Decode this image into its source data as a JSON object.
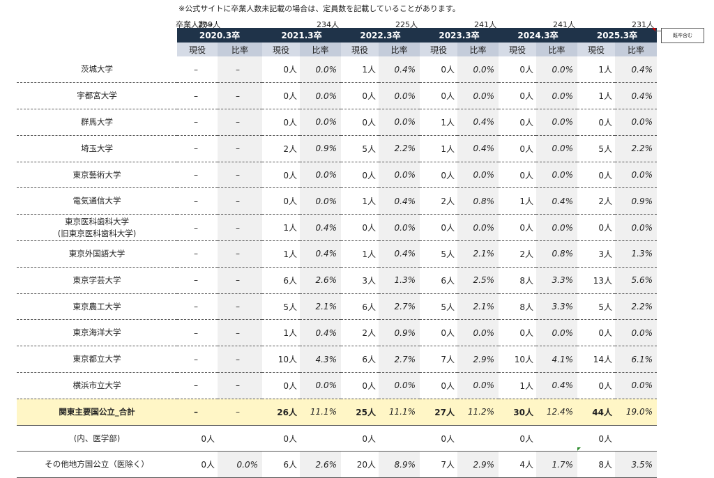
{
  "note": "※公式サイトに卒業人数未記載の場合は、定員数を記載していることがあります。",
  "grad_label": "卒業人数⇒",
  "grad_counts": [
    "239人",
    "234人",
    "225人",
    "241人",
    "241人",
    "231人"
  ],
  "comment": "既卒含む",
  "years": [
    "2020.3卒",
    "2021.3卒",
    "2022.3卒",
    "2023.3卒",
    "2024.3卒",
    "2025.3卒"
  ],
  "sub_headers": {
    "current": "現役",
    "ratio": "比率"
  },
  "rows": [
    {
      "name": "茨城大学",
      "cells": [
        "–",
        "–",
        "0人",
        "0.0%",
        "1人",
        "0.4%",
        "0人",
        "0.0%",
        "0人",
        "0.0%",
        "1人",
        "0.4%"
      ]
    },
    {
      "name": "宇都宮大学",
      "cells": [
        "–",
        "–",
        "0人",
        "0.0%",
        "0人",
        "0.0%",
        "0人",
        "0.0%",
        "0人",
        "0.0%",
        "1人",
        "0.4%"
      ]
    },
    {
      "name": "群馬大学",
      "cells": [
        "–",
        "–",
        "0人",
        "0.0%",
        "0人",
        "0.0%",
        "1人",
        "0.4%",
        "0人",
        "0.0%",
        "0人",
        "0.0%"
      ]
    },
    {
      "name": "埼玉大学",
      "cells": [
        "–",
        "–",
        "2人",
        "0.9%",
        "5人",
        "2.2%",
        "1人",
        "0.4%",
        "0人",
        "0.0%",
        "5人",
        "2.2%"
      ]
    },
    {
      "name": "東京藝術大学",
      "cells": [
        "–",
        "–",
        "0人",
        "0.0%",
        "0人",
        "0.0%",
        "0人",
        "0.0%",
        "0人",
        "0.0%",
        "0人",
        "0.0%"
      ]
    },
    {
      "name": "電気通信大学",
      "cells": [
        "–",
        "–",
        "0人",
        "0.0%",
        "1人",
        "0.4%",
        "2人",
        "0.8%",
        "1人",
        "0.4%",
        "2人",
        "0.9%"
      ]
    },
    {
      "name": "東京医科歯科大学",
      "name2": "(旧東京医科歯科大学)",
      "cells": [
        "–",
        "–",
        "1人",
        "0.4%",
        "0人",
        "0.0%",
        "0人",
        "0.0%",
        "0人",
        "0.0%",
        "0人",
        "0.0%"
      ]
    },
    {
      "name": "東京外国語大学",
      "cells": [
        "–",
        "–",
        "1人",
        "0.4%",
        "1人",
        "0.4%",
        "5人",
        "2.1%",
        "2人",
        "0.8%",
        "3人",
        "1.3%"
      ]
    },
    {
      "name": "東京学芸大学",
      "cells": [
        "–",
        "–",
        "6人",
        "2.6%",
        "3人",
        "1.3%",
        "6人",
        "2.5%",
        "8人",
        "3.3%",
        "13人",
        "5.6%"
      ]
    },
    {
      "name": "東京農工大学",
      "cells": [
        "–",
        "–",
        "5人",
        "2.1%",
        "6人",
        "2.7%",
        "5人",
        "2.1%",
        "8人",
        "3.3%",
        "5人",
        "2.2%"
      ]
    },
    {
      "name": "東京海洋大学",
      "cells": [
        "–",
        "–",
        "1人",
        "0.4%",
        "2人",
        "0.9%",
        "0人",
        "0.0%",
        "0人",
        "0.0%",
        "0人",
        "0.0%"
      ]
    },
    {
      "name": "東京都立大学",
      "cells": [
        "–",
        "–",
        "10人",
        "4.3%",
        "6人",
        "2.7%",
        "7人",
        "2.9%",
        "10人",
        "4.1%",
        "14人",
        "6.1%"
      ]
    },
    {
      "name": "横浜市立大学",
      "cells": [
        "–",
        "–",
        "0人",
        "0.0%",
        "0人",
        "0.0%",
        "0人",
        "0.0%",
        "1人",
        "0.4%",
        "0人",
        "0.0%"
      ]
    }
  ],
  "total_row": {
    "name": "関東主要国公立_合計",
    "cells": [
      "–",
      "–",
      "26人",
      "11.1%",
      "25人",
      "11.1%",
      "27人",
      "11.2%",
      "30人",
      "12.4%",
      "44人",
      "19.0%"
    ]
  },
  "medical_row": {
    "name": "(内、医学部)",
    "cells": [
      "0人",
      "",
      "0人",
      "",
      "0人",
      "",
      "0人",
      "",
      "0人",
      "",
      "0人",
      ""
    ]
  },
  "other_row": {
    "name": "その他地方国公立（医除く）",
    "cells": [
      "0人",
      "0.0%",
      "6人",
      "2.6%",
      "20人",
      "8.9%",
      "7人",
      "2.9%",
      "4人",
      "1.7%",
      "8人",
      "3.5%"
    ]
  }
}
